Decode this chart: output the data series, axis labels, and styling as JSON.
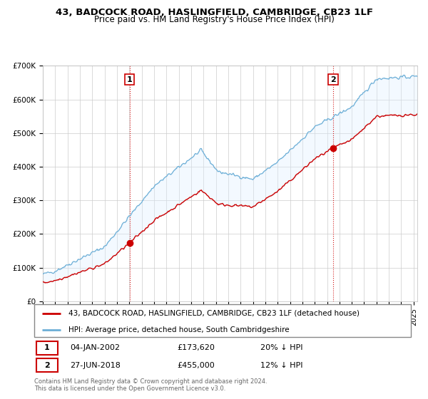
{
  "title": "43, BADCOCK ROAD, HASLINGFIELD, CAMBRIDGE, CB23 1LF",
  "subtitle": "Price paid vs. HM Land Registry's House Price Index (HPI)",
  "ylim": [
    0,
    700000
  ],
  "yticks": [
    0,
    100000,
    200000,
    300000,
    400000,
    500000,
    600000,
    700000
  ],
  "ytick_labels": [
    "£0",
    "£100K",
    "£200K",
    "£300K",
    "£400K",
    "£500K",
    "£600K",
    "£700K"
  ],
  "xlim_start": 1995.0,
  "xlim_end": 2025.3,
  "sale1_date": 2002.03,
  "sale1_price": 173620,
  "sale1_label": "1",
  "sale2_date": 2018.49,
  "sale2_price": 455000,
  "sale2_label": "2",
  "hpi_color": "#6baed6",
  "price_color": "#cc0000",
  "fill_color": "#ddeeff",
  "vline_color": "#cc0000",
  "background_color": "#ffffff",
  "grid_color": "#cccccc",
  "legend1_text": "43, BADCOCK ROAD, HASLINGFIELD, CAMBRIDGE, CB23 1LF (detached house)",
  "legend2_text": "HPI: Average price, detached house, South Cambridgeshire",
  "footer": "Contains HM Land Registry data © Crown copyright and database right 2024.\nThis data is licensed under the Open Government Licence v3.0.",
  "title_fontsize": 9.5,
  "subtitle_fontsize": 8.5,
  "tick_fontsize": 7.5,
  "legend_fontsize": 7.5,
  "ann_fontsize": 8
}
